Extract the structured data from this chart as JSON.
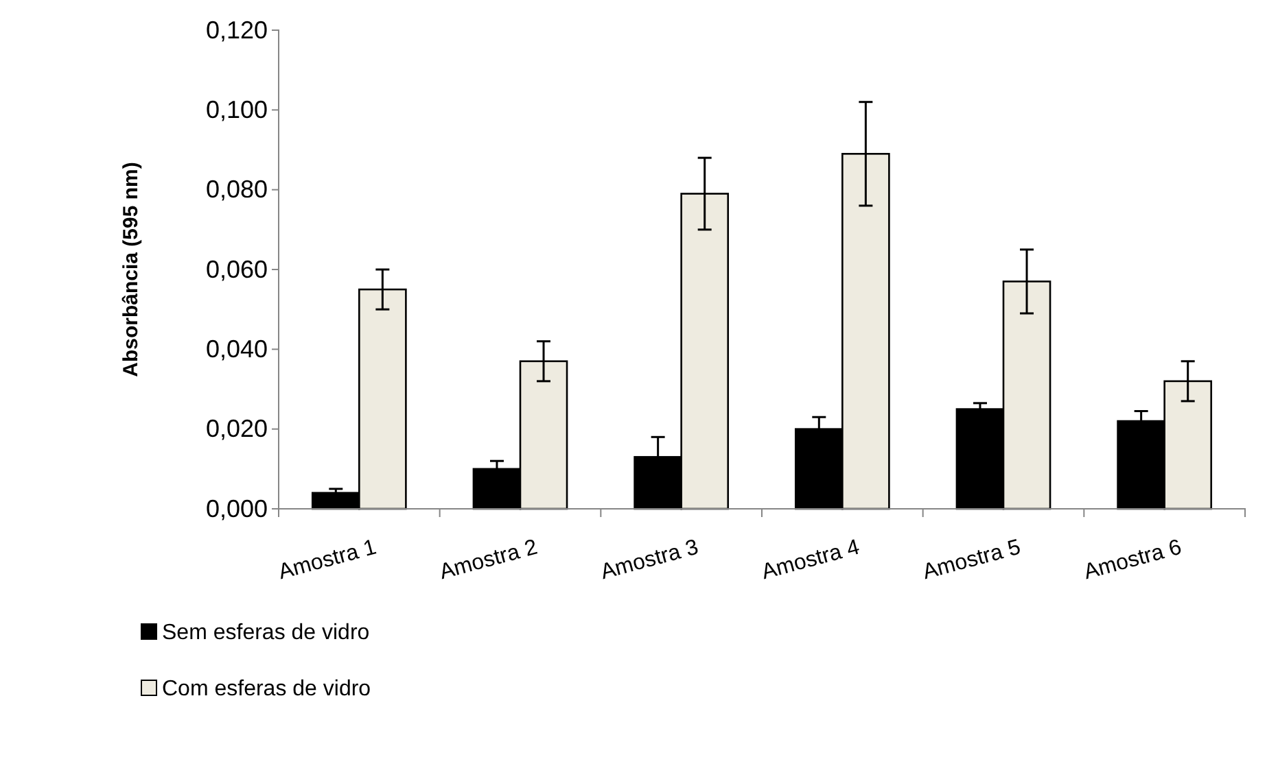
{
  "chart_data": {
    "type": "bar",
    "ylabel": "Absorbância (595 nm)",
    "categories": [
      "Amostra 1",
      "Amostra 2",
      "Amostra 3",
      "Amostra 4",
      "Amostra 5",
      "Amostra 6"
    ],
    "series": [
      {
        "name": "Sem esferas de vidro",
        "color": "#000000",
        "values": [
          0.004,
          0.01,
          0.013,
          0.02,
          0.025,
          0.022
        ],
        "errors": [
          0.001,
          0.002,
          0.005,
          0.003,
          0.0015,
          0.0025
        ]
      },
      {
        "name": "Com esferas de vidro",
        "color": "#eeebe0",
        "values": [
          0.055,
          0.037,
          0.079,
          0.089,
          0.057,
          0.032
        ],
        "errors": [
          0.005,
          0.005,
          0.009,
          0.013,
          0.008,
          0.005
        ]
      }
    ],
    "ylim": [
      0,
      0.12
    ],
    "yticks": [
      {
        "value": 0,
        "label": "0,000"
      },
      {
        "value": 0.02,
        "label": "0,020"
      },
      {
        "value": 0.04,
        "label": "0,040"
      },
      {
        "value": 0.06,
        "label": "0,060"
      },
      {
        "value": 0.08,
        "label": "0,080"
      },
      {
        "value": 0.1,
        "label": "0,100"
      },
      {
        "value": 0.12,
        "label": "0,120"
      }
    ],
    "grid": false,
    "legend": "bottom left"
  }
}
